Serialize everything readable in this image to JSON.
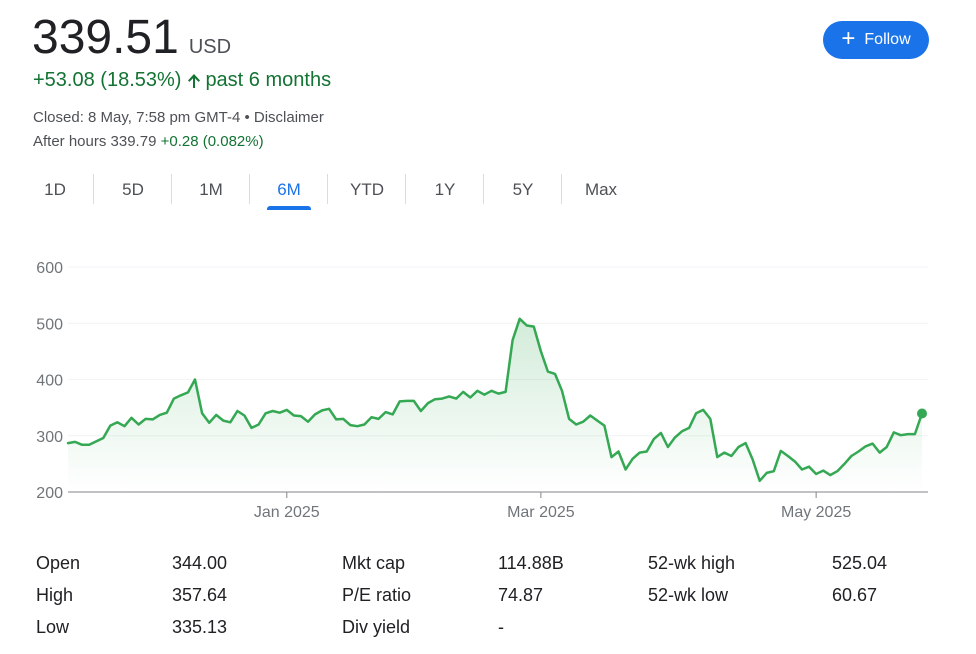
{
  "quote": {
    "price": "339.51",
    "currency": "USD",
    "change_text": "+53.08 (18.53%)",
    "period_text": "past 6 months",
    "closed_text": "Closed: 8 May, 7:58 pm GMT-4 • Disclaimer",
    "after_hours_label": "After hours 339.79",
    "after_hours_change": "+0.28 (0.082%)"
  },
  "follow_button": {
    "label": "Follow"
  },
  "ranges": [
    {
      "label": "1D",
      "active": false
    },
    {
      "label": "5D",
      "active": false
    },
    {
      "label": "1M",
      "active": false
    },
    {
      "label": "6M",
      "active": true
    },
    {
      "label": "YTD",
      "active": false
    },
    {
      "label": "1Y",
      "active": false
    },
    {
      "label": "5Y",
      "active": false
    },
    {
      "label": "Max",
      "active": false
    }
  ],
  "colors": {
    "positive": "#137333",
    "line": "#34a853",
    "accent": "#1a73e8"
  },
  "chart_data": {
    "type": "area",
    "y_ticks": [
      200,
      300,
      400,
      500,
      600
    ],
    "ylim": [
      200,
      600
    ],
    "x_tick_labels": [
      "Jan 2025",
      "Mar 2025",
      "May 2025"
    ],
    "x_tick_index": [
      31,
      67,
      106
    ],
    "values": [
      287,
      289,
      284,
      284,
      290,
      296,
      318,
      324,
      317,
      332,
      320,
      330,
      329,
      337,
      341,
      366,
      372,
      377,
      400,
      340,
      323,
      337,
      327,
      324,
      344,
      336,
      314,
      320,
      340,
      344,
      341,
      346,
      336,
      335,
      325,
      338,
      345,
      348,
      329,
      330,
      319,
      317,
      320,
      333,
      330,
      342,
      338,
      361,
      362,
      362,
      344,
      358,
      365,
      366,
      370,
      366,
      378,
      368,
      380,
      373,
      380,
      375,
      378,
      470,
      508,
      496,
      494,
      450,
      414,
      410,
      380,
      330,
      320,
      325,
      336,
      327,
      318,
      262,
      272,
      240,
      259,
      270,
      272,
      294,
      305,
      280,
      297,
      308,
      314,
      340,
      346,
      330,
      262,
      270,
      264,
      280,
      287,
      258,
      220,
      234,
      237,
      273,
      264,
      254,
      240,
      245,
      232,
      238,
      230,
      237,
      250,
      264,
      272,
      281,
      286,
      270,
      280,
      306,
      301,
      303,
      303,
      339.51
    ],
    "grid": true,
    "previous_close_line": false
  },
  "stats": [
    {
      "label": "Open",
      "value": "344.00"
    },
    {
      "label": "High",
      "value": "357.64"
    },
    {
      "label": "Low",
      "value": "335.13"
    },
    {
      "label": "Mkt cap",
      "value": "114.88B"
    },
    {
      "label": "P/E ratio",
      "value": "74.87"
    },
    {
      "label": "Div yield",
      "value": "-"
    },
    {
      "label": "52-wk high",
      "value": "525.04"
    },
    {
      "label": "52-wk low",
      "value": "60.67"
    }
  ]
}
